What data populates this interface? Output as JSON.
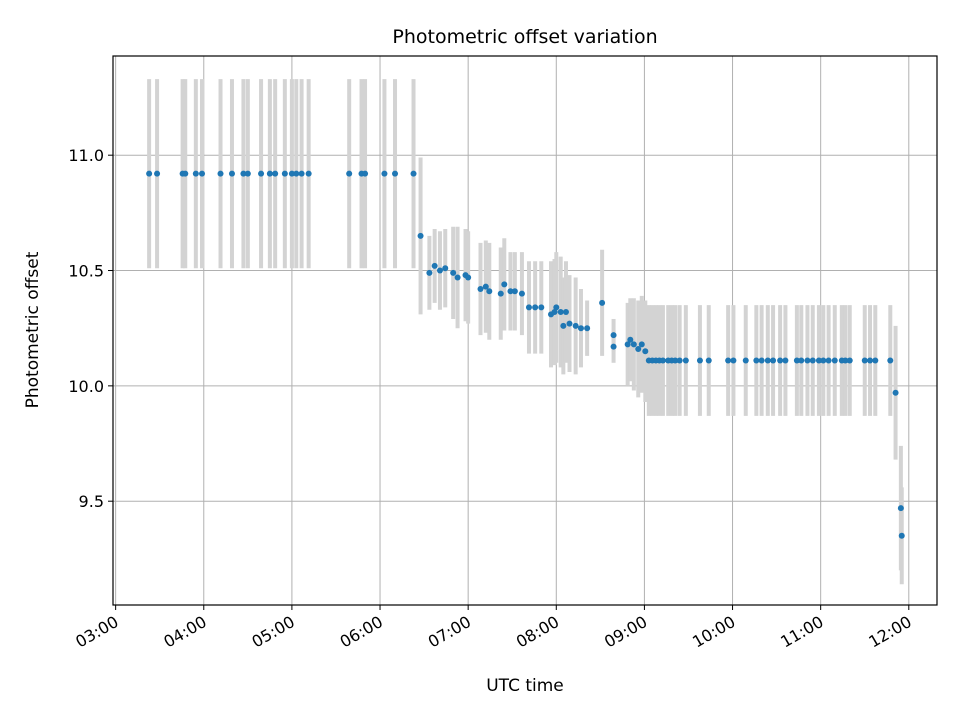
{
  "chart_data": {
    "type": "scatter",
    "title": "Photometric offset variation",
    "xlabel": "UTC time",
    "ylabel": "Photometric offset",
    "x_unit": "hours UTC",
    "xlim": [
      2.97,
      12.32
    ],
    "ylim": [
      9.05,
      11.43
    ],
    "x_ticks": [
      3,
      4,
      5,
      6,
      7,
      8,
      9,
      10,
      11,
      12
    ],
    "x_tick_labels": [
      "03:00",
      "04:00",
      "05:00",
      "06:00",
      "07:00",
      "08:00",
      "09:00",
      "10:00",
      "11:00",
      "12:00"
    ],
    "y_ticks": [
      9.5,
      10.0,
      10.5,
      11.0
    ],
    "y_tick_labels": [
      "9.5",
      "10.0",
      "10.5",
      "11.0"
    ],
    "grid": true,
    "marker_color": "#1f77b4",
    "errorbar_color": "#d3d3d3",
    "series": [
      {
        "points": [
          [
            3.38,
            10.92,
            0.41
          ],
          [
            3.47,
            10.92,
            0.41
          ],
          [
            3.76,
            10.92,
            0.41
          ],
          [
            3.79,
            10.92,
            0.41
          ],
          [
            3.91,
            10.92,
            0.41
          ],
          [
            3.98,
            10.92,
            0.41
          ],
          [
            4.19,
            10.92,
            0.41
          ],
          [
            4.32,
            10.92,
            0.41
          ],
          [
            4.45,
            10.92,
            0.41
          ],
          [
            4.5,
            10.92,
            0.41
          ],
          [
            4.65,
            10.92,
            0.41
          ],
          [
            4.75,
            10.92,
            0.41
          ],
          [
            4.81,
            10.92,
            0.41
          ],
          [
            4.92,
            10.92,
            0.41
          ],
          [
            5.0,
            10.92,
            0.41
          ],
          [
            5.05,
            10.92,
            0.41
          ],
          [
            5.11,
            10.92,
            0.41
          ],
          [
            5.19,
            10.92,
            0.41
          ],
          [
            5.65,
            10.92,
            0.41
          ],
          [
            5.79,
            10.92,
            0.41
          ],
          [
            5.83,
            10.92,
            0.41
          ],
          [
            6.05,
            10.92,
            0.41
          ],
          [
            6.17,
            10.92,
            0.41
          ],
          [
            6.38,
            10.92,
            0.41
          ],
          [
            6.46,
            10.65,
            0.34
          ],
          [
            6.56,
            10.49,
            0.16
          ],
          [
            6.62,
            10.52,
            0.16
          ],
          [
            6.68,
            10.5,
            0.17
          ],
          [
            6.74,
            10.51,
            0.17
          ],
          [
            6.83,
            10.49,
            0.2
          ],
          [
            6.88,
            10.47,
            0.22
          ],
          [
            6.97,
            10.48,
            0.2
          ],
          [
            7.0,
            10.47,
            0.2
          ],
          [
            7.14,
            10.42,
            0.2
          ],
          [
            7.2,
            10.43,
            0.2
          ],
          [
            7.24,
            10.41,
            0.21
          ],
          [
            7.37,
            10.4,
            0.2
          ],
          [
            7.41,
            10.44,
            0.2
          ],
          [
            7.48,
            10.41,
            0.17
          ],
          [
            7.53,
            10.41,
            0.17
          ],
          [
            7.61,
            10.4,
            0.18
          ],
          [
            7.69,
            10.34,
            0.2
          ],
          [
            7.76,
            10.34,
            0.2
          ],
          [
            7.83,
            10.34,
            0.2
          ],
          [
            7.94,
            10.31,
            0.23
          ],
          [
            7.98,
            10.32,
            0.23
          ],
          [
            8.0,
            10.34,
            0.24
          ],
          [
            8.05,
            10.32,
            0.24
          ],
          [
            8.08,
            10.26,
            0.21
          ],
          [
            8.11,
            10.32,
            0.22
          ],
          [
            8.15,
            10.27,
            0.21
          ],
          [
            8.22,
            10.26,
            0.21
          ],
          [
            8.28,
            10.25,
            0.17
          ],
          [
            8.35,
            10.25,
            0.12
          ],
          [
            8.52,
            10.36,
            0.23
          ],
          [
            8.65,
            10.22,
            0.07
          ],
          [
            8.65,
            10.17,
            0.07
          ],
          [
            8.81,
            10.18,
            0.18
          ],
          [
            8.84,
            10.2,
            0.18
          ],
          [
            8.88,
            10.18,
            0.2
          ],
          [
            8.93,
            10.16,
            0.21
          ],
          [
            8.97,
            10.18,
            0.21
          ],
          [
            9.01,
            10.15,
            0.22
          ],
          [
            9.05,
            10.11,
            0.24
          ],
          [
            9.09,
            10.11,
            0.24
          ],
          [
            9.13,
            10.11,
            0.24
          ],
          [
            9.17,
            10.11,
            0.24
          ],
          [
            9.21,
            10.11,
            0.24
          ],
          [
            9.27,
            10.11,
            0.24
          ],
          [
            9.31,
            10.11,
            0.24
          ],
          [
            9.35,
            10.11,
            0.24
          ],
          [
            9.4,
            10.11,
            0.24
          ],
          [
            9.47,
            10.11,
            0.24
          ],
          [
            9.63,
            10.11,
            0.24
          ],
          [
            9.73,
            10.11,
            0.24
          ],
          [
            9.95,
            10.11,
            0.24
          ],
          [
            10.01,
            10.11,
            0.24
          ],
          [
            10.15,
            10.11,
            0.24
          ],
          [
            10.27,
            10.11,
            0.24
          ],
          [
            10.33,
            10.11,
            0.24
          ],
          [
            10.4,
            10.11,
            0.24
          ],
          [
            10.46,
            10.11,
            0.24
          ],
          [
            10.54,
            10.11,
            0.24
          ],
          [
            10.6,
            10.11,
            0.24
          ],
          [
            10.73,
            10.11,
            0.24
          ],
          [
            10.78,
            10.11,
            0.24
          ],
          [
            10.85,
            10.11,
            0.24
          ],
          [
            10.91,
            10.11,
            0.24
          ],
          [
            10.98,
            10.11,
            0.24
          ],
          [
            11.03,
            10.11,
            0.24
          ],
          [
            11.09,
            10.11,
            0.24
          ],
          [
            11.16,
            10.11,
            0.24
          ],
          [
            11.24,
            10.11,
            0.24
          ],
          [
            11.28,
            10.11,
            0.24
          ],
          [
            11.33,
            10.11,
            0.24
          ],
          [
            11.5,
            10.11,
            0.24
          ],
          [
            11.56,
            10.11,
            0.24
          ],
          [
            11.62,
            10.11,
            0.24
          ],
          [
            11.79,
            10.11,
            0.24
          ],
          [
            11.85,
            9.97,
            0.29
          ],
          [
            11.91,
            9.47,
            0.27
          ],
          [
            11.92,
            9.35,
            0.21
          ]
        ]
      }
    ]
  }
}
